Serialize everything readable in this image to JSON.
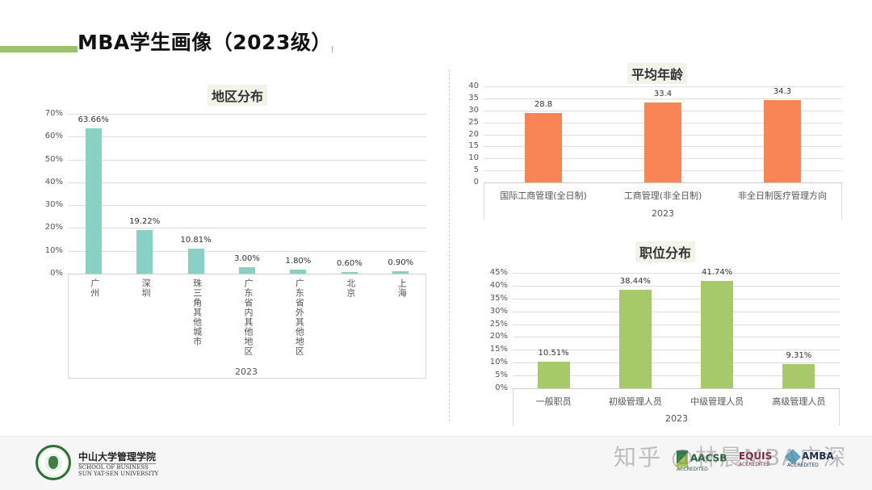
{
  "page": {
    "title": "MBA学生画像（2023级）",
    "accent_color": "#9dc36a"
  },
  "footer": {
    "school_cn": "中山大学管理学院",
    "school_en_line1": "SCHOOL OF BUSINESS",
    "school_en_line2": "SUN YAT-SEN UNIVERSITY",
    "badges": [
      "AACSB ACCREDITED",
      "EQUIS ACCREDITED",
      "AMBA ACCREDITED"
    ],
    "badge_labels": {
      "aacsb": "AACSB",
      "aacsb_sub": "ACCREDITED",
      "equis": "EQUIS",
      "equis_sub": "ACCREDITED",
      "amba": "AMBA",
      "amba_sub": "ACCREDITED"
    },
    "watermark": "知乎 @林晨MBA广深"
  },
  "chart_data": [
    {
      "type": "bar",
      "title": "地区分布",
      "categories": [
        "广州",
        "深圳",
        "珠三角其他城市",
        "广东省内其他地区",
        "广东省外其他地区",
        "北京",
        "上海"
      ],
      "values": [
        63.66,
        19.22,
        10.81,
        3.0,
        1.8,
        0.6,
        0.9
      ],
      "value_labels": [
        "63.66%",
        "19.22%",
        "10.81%",
        "3.00%",
        "1.80%",
        "0.60%",
        "0.90%"
      ],
      "xlabel": "2023",
      "ylabel": "",
      "yticks": [
        "70%",
        "60%",
        "50%",
        "40%",
        "30%",
        "20%",
        "10%",
        "0%"
      ],
      "ylim": [
        0,
        70
      ],
      "grid": true,
      "color": "#88d1c3"
    },
    {
      "type": "bar",
      "title": "平均年龄",
      "categories": [
        "国际工商管理(全日制)",
        "工商管理(非全日制)",
        "非全日制医疗管理方向"
      ],
      "values": [
        28.8,
        33.4,
        34.3
      ],
      "value_labels": [
        "28.8",
        "33.4",
        "34.3"
      ],
      "xlabel": "2023",
      "ylabel": "",
      "yticks": [
        "40",
        "35",
        "30",
        "25",
        "20",
        "15",
        "10",
        "5",
        "0"
      ],
      "ylim": [
        0,
        40
      ],
      "grid": true,
      "color": "#f98456"
    },
    {
      "type": "bar",
      "title": "职位分布",
      "categories": [
        "一般职员",
        "初级管理人员",
        "中级管理人员",
        "高级管理人员"
      ],
      "values": [
        10.51,
        38.44,
        41.74,
        9.31
      ],
      "value_labels": [
        "10.51%",
        "38.44%",
        "41.74%",
        "9.31%"
      ],
      "xlabel": "2023",
      "ylabel": "",
      "yticks": [
        "45%",
        "40%",
        "35%",
        "30%",
        "25%",
        "20%",
        "15%",
        "10%",
        "5%",
        "0%"
      ],
      "ylim": [
        0,
        45
      ],
      "grid": true,
      "color": "#a7c96a"
    }
  ]
}
